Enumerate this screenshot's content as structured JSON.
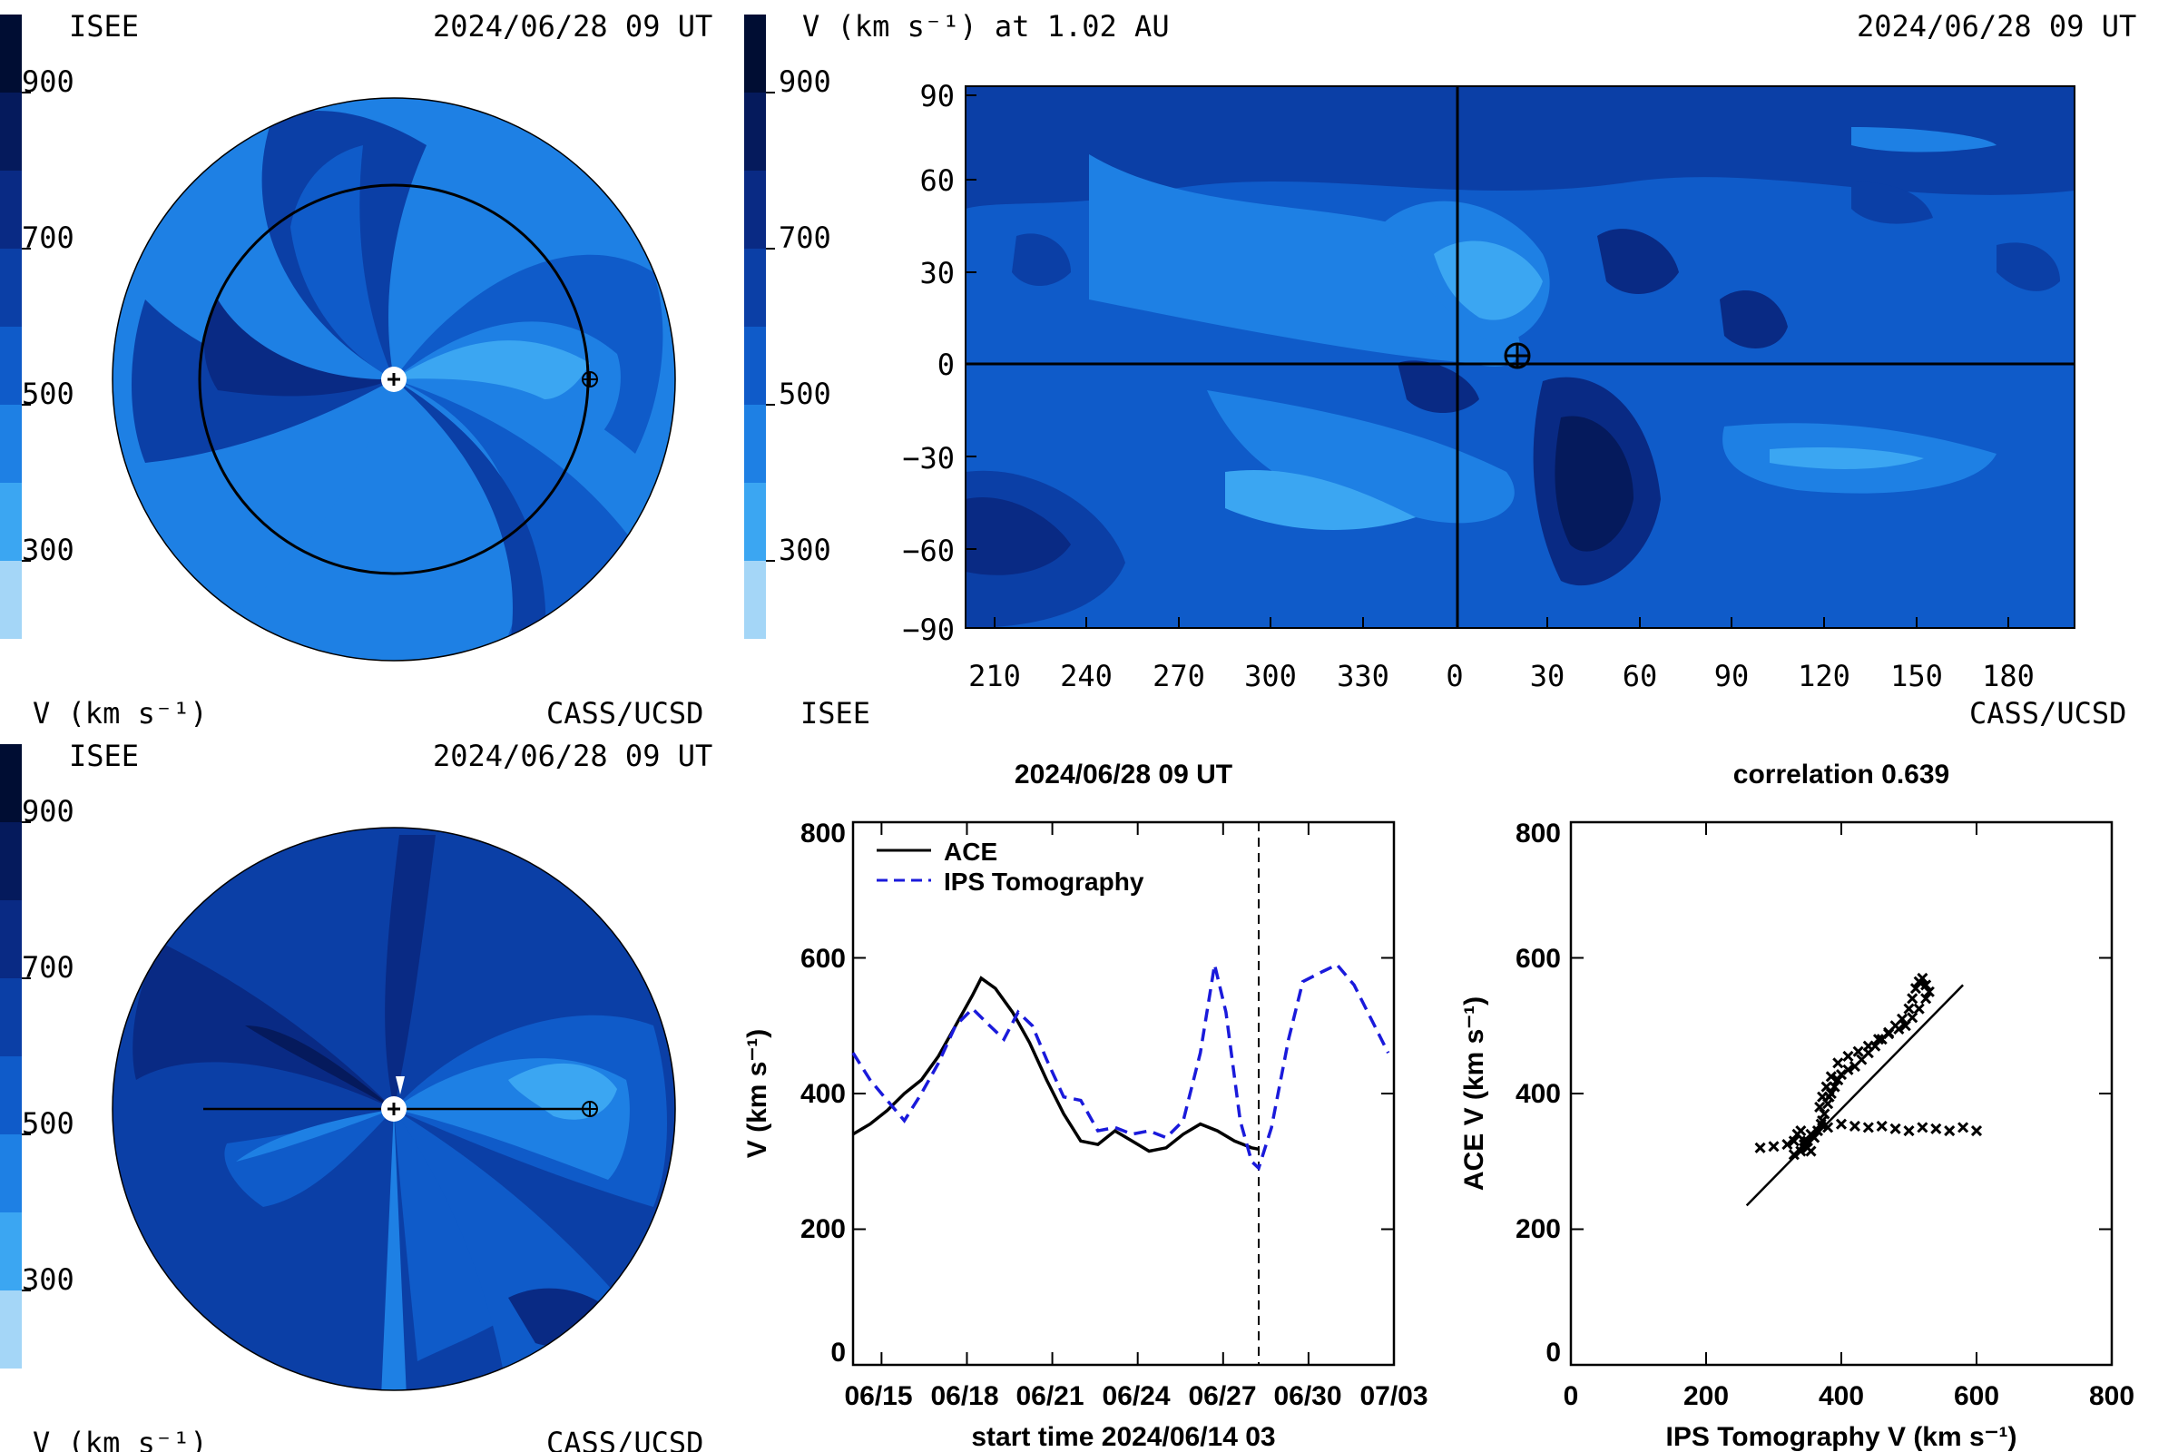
{
  "colors": {
    "scale": [
      "#a4d6f7",
      "#3ba6f2",
      "#1e80e4",
      "#0f5bc9",
      "#0b3fa6",
      "#092a84",
      "#051a5c",
      "#000d33"
    ],
    "ace_line": "#000000",
    "ips_line": "#1a1adb"
  },
  "panels": {
    "top_left": {
      "header_left": "ISEE",
      "header_right": "2024/06/28 09 UT",
      "footer_left": "V (km s⁻¹)",
      "footer_right": "CASS/UCSD",
      "scale_ticks": [
        "900",
        "700",
        "500",
        "300"
      ],
      "earth_icon": "earth-symbol-icon",
      "sun_icon": "sun-symbol-icon"
    },
    "top_right": {
      "header_left": "V (km s⁻¹) at 1.02 AU",
      "header_right": "2024/06/28 09 UT",
      "footer_left": "ISEE",
      "footer_right": "CASS/UCSD",
      "scale_ticks": [
        "900",
        "700",
        "500",
        "300"
      ],
      "x_ticks": [
        "210",
        "240",
        "270",
        "300",
        "330",
        "0",
        "30",
        "60",
        "90",
        "120",
        "150",
        "180"
      ],
      "y_ticks": [
        "90",
        "60",
        "30",
        "0",
        "−30",
        "−60",
        "−90"
      ],
      "earth_icon": "earth-symbol-icon"
    },
    "bottom_left": {
      "header_left": "ISEE",
      "header_right": "2024/06/28 09 UT",
      "footer_left": "V (km s⁻¹)",
      "footer_right": "CASS/UCSD",
      "scale_ticks": [
        "900",
        "700",
        "500",
        "300"
      ]
    }
  },
  "chart_data": [
    {
      "type": "line",
      "title": "2024/06/28 09 UT",
      "xlabel": "start time 2024/06/14 03",
      "ylabel": "V (km s⁻¹)",
      "ylim": [
        0,
        800
      ],
      "x_tick_labels": [
        "06/15",
        "06/18",
        "06/21",
        "06/24",
        "06/27",
        "06/30",
        "07/03"
      ],
      "y_tick_labels": [
        "0",
        "200",
        "400",
        "600",
        "800"
      ],
      "legend_position": "top-left",
      "vertical_marker_day": 14.25,
      "series": [
        {
          "name": "ACE",
          "style": "solid",
          "points": [
            [
              0,
              340
            ],
            [
              0.6,
              355
            ],
            [
              1.2,
              375
            ],
            [
              1.8,
              400
            ],
            [
              2.4,
              420
            ],
            [
              3.0,
              455
            ],
            [
              3.6,
              500
            ],
            [
              4.2,
              545
            ],
            [
              4.5,
              570
            ],
            [
              5.0,
              555
            ],
            [
              5.6,
              520
            ],
            [
              6.2,
              475
            ],
            [
              6.8,
              420
            ],
            [
              7.4,
              370
            ],
            [
              8.0,
              330
            ],
            [
              8.6,
              325
            ],
            [
              9.2,
              345
            ],
            [
              9.8,
              330
            ],
            [
              10.4,
              315
            ],
            [
              11.0,
              320
            ],
            [
              11.6,
              340
            ],
            [
              12.2,
              355
            ],
            [
              12.8,
              345
            ],
            [
              13.4,
              330
            ],
            [
              14.0,
              320
            ],
            [
              14.25,
              318
            ]
          ]
        },
        {
          "name": "IPS Tomography",
          "style": "dashed",
          "points": [
            [
              0,
              460
            ],
            [
              0.6,
              420
            ],
            [
              1.2,
              390
            ],
            [
              1.8,
              360
            ],
            [
              2.4,
              400
            ],
            [
              3.0,
              445
            ],
            [
              3.6,
              500
            ],
            [
              4.2,
              525
            ],
            [
              4.8,
              500
            ],
            [
              5.3,
              480
            ],
            [
              5.8,
              520
            ],
            [
              6.3,
              500
            ],
            [
              6.8,
              450
            ],
            [
              7.4,
              395
            ],
            [
              8.0,
              390
            ],
            [
              8.6,
              345
            ],
            [
              9.2,
              350
            ],
            [
              9.8,
              340
            ],
            [
              10.4,
              345
            ],
            [
              11.0,
              335
            ],
            [
              11.6,
              360
            ],
            [
              12.2,
              460
            ],
            [
              12.7,
              590
            ],
            [
              13.1,
              520
            ],
            [
              13.6,
              360
            ],
            [
              14.0,
              300
            ],
            [
              14.25,
              290
            ],
            [
              14.7,
              350
            ],
            [
              15.3,
              480
            ],
            [
              15.8,
              565
            ],
            [
              16.5,
              580
            ],
            [
              17.0,
              590
            ],
            [
              17.6,
              560
            ],
            [
              18.2,
              510
            ],
            [
              18.8,
              460
            ]
          ]
        }
      ]
    },
    {
      "type": "scatter",
      "title": "correlation 0.639",
      "xlabel": "IPS Tomography V (km s⁻¹)",
      "ylabel": "ACE V (km s⁻¹)",
      "xlim": [
        0,
        800
      ],
      "ylim": [
        0,
        800
      ],
      "x_tick_labels": [
        "0",
        "200",
        "400",
        "600",
        "800"
      ],
      "y_tick_labels": [
        "0",
        "200",
        "400",
        "600",
        "800"
      ],
      "fit_line": [
        [
          260,
          235
        ],
        [
          580,
          560
        ]
      ],
      "points": [
        [
          280,
          320
        ],
        [
          300,
          322
        ],
        [
          320,
          325
        ],
        [
          330,
          330
        ],
        [
          335,
          340
        ],
        [
          340,
          345
        ],
        [
          345,
          330
        ],
        [
          350,
          320
        ],
        [
          355,
          315
        ],
        [
          360,
          335
        ],
        [
          365,
          345
        ],
        [
          370,
          355
        ],
        [
          375,
          370
        ],
        [
          380,
          385
        ],
        [
          382,
          395
        ],
        [
          385,
          400
        ],
        [
          390,
          410
        ],
        [
          395,
          420
        ],
        [
          400,
          428
        ],
        [
          410,
          435
        ],
        [
          420,
          440
        ],
        [
          430,
          450
        ],
        [
          440,
          460
        ],
        [
          450,
          470
        ],
        [
          460,
          480
        ],
        [
          470,
          490
        ],
        [
          480,
          500
        ],
        [
          490,
          510
        ],
        [
          500,
          525
        ],
        [
          505,
          540
        ],
        [
          510,
          555
        ],
        [
          515,
          565
        ],
        [
          520,
          570
        ],
        [
          525,
          560
        ],
        [
          530,
          550
        ],
        [
          525,
          540
        ],
        [
          515,
          525
        ],
        [
          505,
          512
        ],
        [
          495,
          500
        ],
        [
          485,
          495
        ],
        [
          470,
          488
        ],
        [
          455,
          480
        ],
        [
          440,
          470
        ],
        [
          425,
          462
        ],
        [
          410,
          455
        ],
        [
          395,
          445
        ],
        [
          385,
          425
        ],
        [
          378,
          410
        ],
        [
          372,
          395
        ],
        [
          368,
          380
        ],
        [
          372,
          360
        ],
        [
          380,
          350
        ],
        [
          400,
          355
        ],
        [
          420,
          352
        ],
        [
          440,
          350
        ],
        [
          460,
          352
        ],
        [
          480,
          348
        ],
        [
          500,
          345
        ],
        [
          520,
          350
        ],
        [
          540,
          348
        ],
        [
          560,
          345
        ],
        [
          580,
          350
        ],
        [
          600,
          345
        ],
        [
          350,
          330
        ],
        [
          340,
          315
        ],
        [
          330,
          310
        ],
        [
          345,
          325
        ],
        [
          355,
          340
        ]
      ]
    }
  ]
}
